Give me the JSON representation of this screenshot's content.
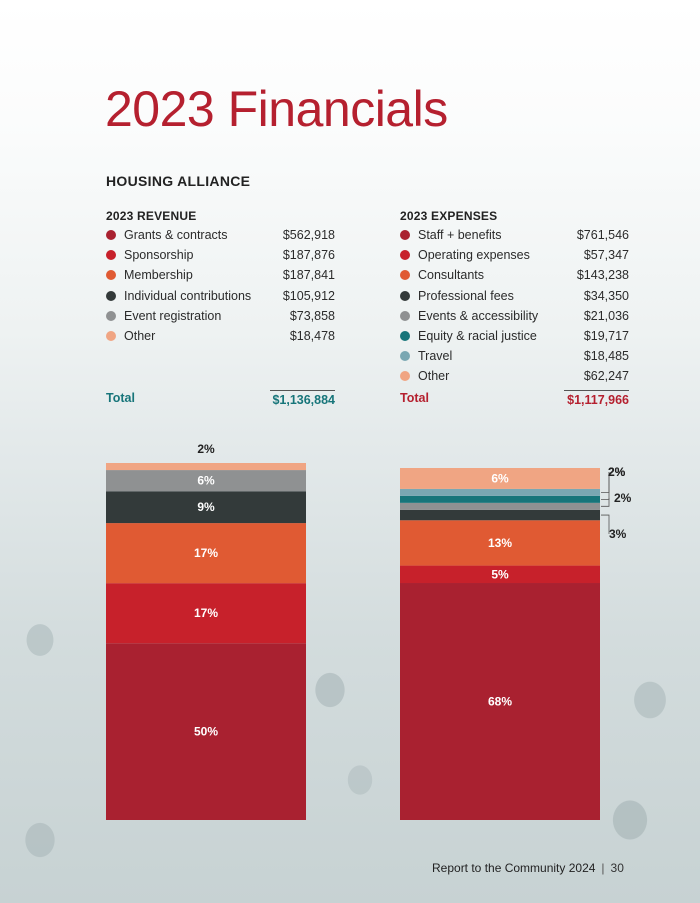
{
  "page": {
    "title": "2023 Financials",
    "organization": "HOUSING ALLIANCE",
    "footer_text": "Report to the Community 2024",
    "page_number": "30"
  },
  "colors": {
    "title": "#b5202f",
    "revenue_total": "#17757a",
    "expense_total": "#b5202f"
  },
  "revenue": {
    "heading": "2023 REVENUE",
    "items": [
      {
        "label": "Grants & contracts",
        "amount": "$562,918",
        "color": "#a92130"
      },
      {
        "label": "Sponsorship",
        "amount": "$187,876",
        "color": "#c7212b"
      },
      {
        "label": "Membership",
        "amount": "$187,841",
        "color": "#e05a33"
      },
      {
        "label": "Individual contributions",
        "amount": "$105,912",
        "color": "#333a3a"
      },
      {
        "label": "Event registration",
        "amount": "$73,858",
        "color": "#8f9192"
      },
      {
        "label": "Other",
        "amount": "$18,478",
        "color": "#f0a583"
      }
    ],
    "total_label": "Total",
    "total_amount": "$1,136,884"
  },
  "expenses": {
    "heading": "2023 EXPENSES",
    "items": [
      {
        "label": "Staff + benefits",
        "amount": "$761,546",
        "color": "#a92130"
      },
      {
        "label": "Operating expenses",
        "amount": "$57,347",
        "color": "#c7212b"
      },
      {
        "label": "Consultants",
        "amount": "$143,238",
        "color": "#e05a33"
      },
      {
        "label": "Professional fees",
        "amount": "$34,350",
        "color": "#333a3a"
      },
      {
        "label": "Events & accessibility",
        "amount": "$21,036",
        "color": "#8f9192"
      },
      {
        "label": "Equity & racial justice",
        "amount": "$19,717",
        "color": "#17757a"
      },
      {
        "label": "Travel",
        "amount": "$18,485",
        "color": "#7aa7b2"
      },
      {
        "label": "Other",
        "amount": "$62,247",
        "color": "#f0a583"
      }
    ],
    "total_label": "Total",
    "total_amount": "$1,117,966"
  },
  "chart_data": [
    {
      "type": "bar",
      "stacked": true,
      "title": "2023 Revenue",
      "series": [
        {
          "name": "Grants & contracts",
          "value": 50,
          "label": "50%",
          "color": "#a92130"
        },
        {
          "name": "Sponsorship",
          "value": 17,
          "label": "17%",
          "color": "#c7212b"
        },
        {
          "name": "Membership",
          "value": 17,
          "label": "17%",
          "color": "#e05a33"
        },
        {
          "name": "Individual contributions",
          "value": 9,
          "label": "9%",
          "color": "#333a3a"
        },
        {
          "name": "Event registration",
          "value": 6,
          "label": "6%",
          "color": "#8f9192"
        },
        {
          "name": "Other",
          "value": 2,
          "label": "2%",
          "color": "#f0a583"
        }
      ],
      "ylim": [
        0,
        100
      ]
    },
    {
      "type": "bar",
      "stacked": true,
      "title": "2023 Expenses",
      "series": [
        {
          "name": "Staff + benefits",
          "value": 68,
          "label": "68%",
          "color": "#a92130"
        },
        {
          "name": "Operating expenses",
          "value": 5,
          "label": "5%",
          "color": "#c7212b"
        },
        {
          "name": "Consultants",
          "value": 13,
          "label": "13%",
          "color": "#e05a33"
        },
        {
          "name": "Professional fees",
          "value": 3,
          "label": "3%",
          "color": "#333a3a"
        },
        {
          "name": "Events & accessibility",
          "value": 2,
          "label": "2%",
          "color": "#8f9192"
        },
        {
          "name": "Equity & racial justice",
          "value": 2,
          "label": "2%",
          "color": "#17757a"
        },
        {
          "name": "Travel",
          "value": 2,
          "label": "2%",
          "color": "#7aa7b2"
        },
        {
          "name": "Other",
          "value": 6,
          "label": "6%",
          "color": "#f0a583"
        }
      ],
      "ylim": [
        0,
        100
      ]
    }
  ]
}
